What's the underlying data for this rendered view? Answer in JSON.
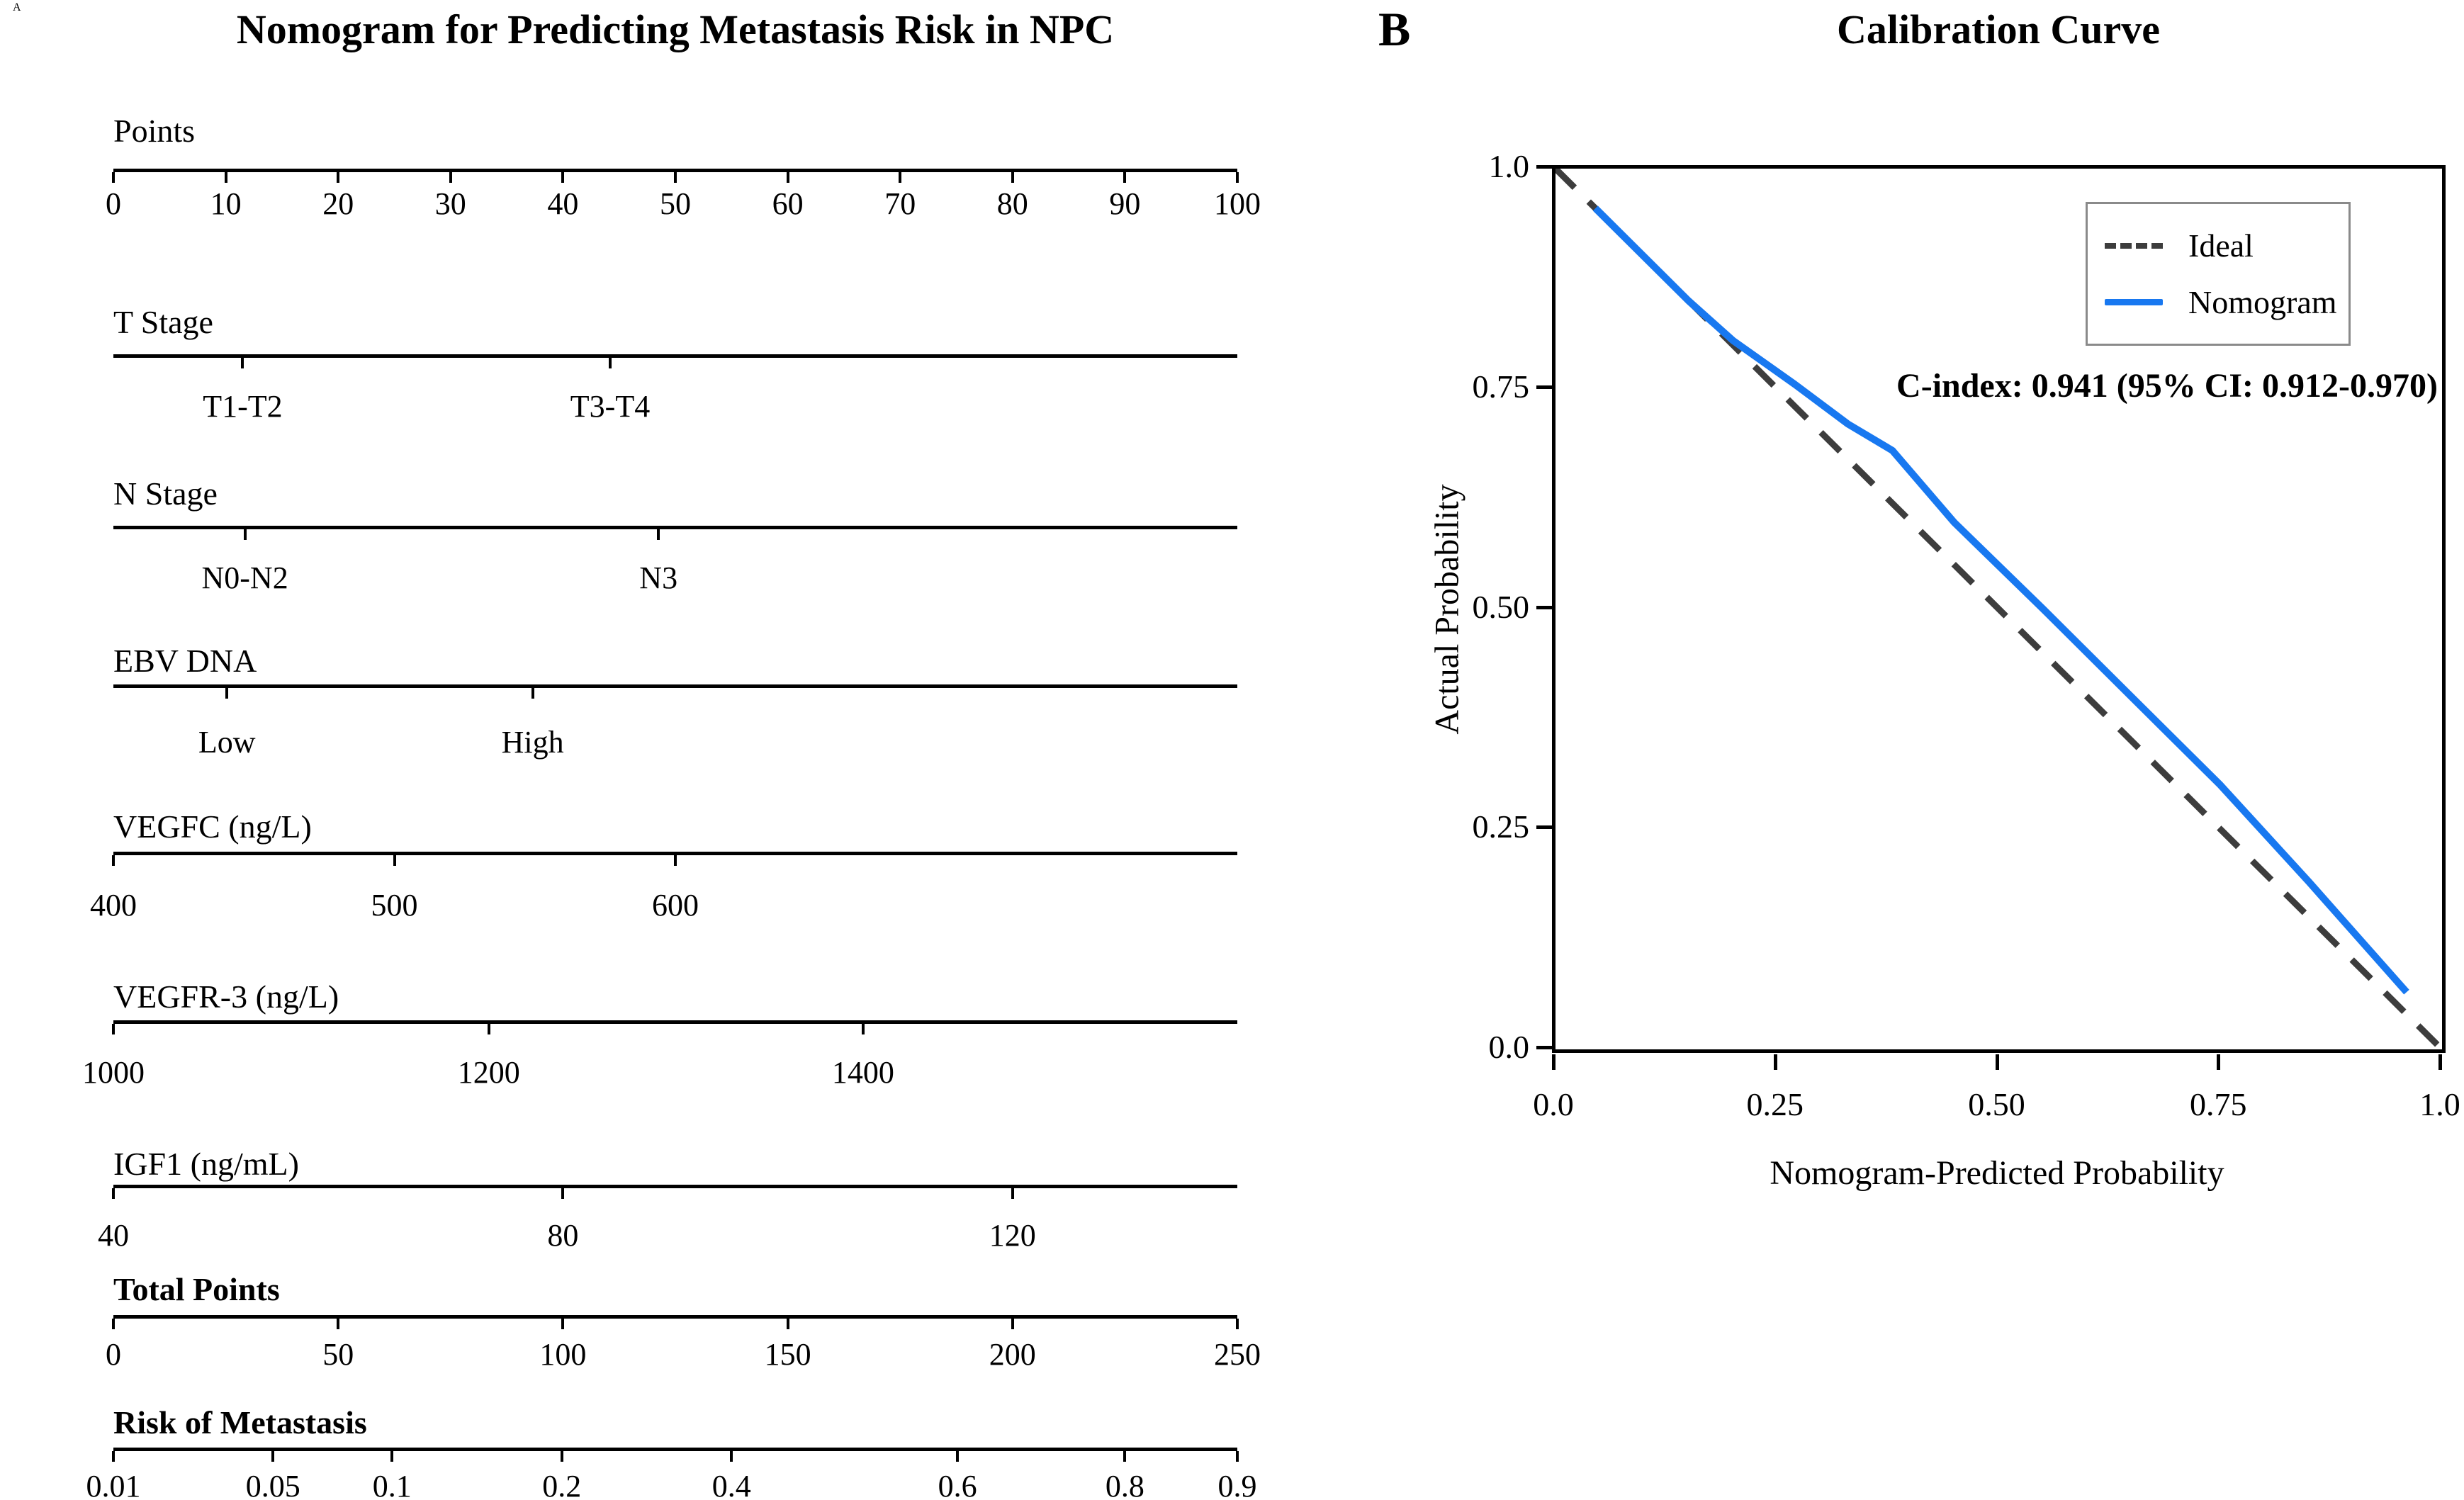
{
  "panel_a": {
    "label": "A",
    "title": "Nomogram for Predicting Metastasis Risk in NPC",
    "rows": [
      {
        "label": "Points",
        "bold": false,
        "ticks": [
          {
            "f": 0,
            "t": "0"
          },
          {
            "f": 0.1,
            "t": "10"
          },
          {
            "f": 0.2,
            "t": "20"
          },
          {
            "f": 0.3,
            "t": "30"
          },
          {
            "f": 0.4,
            "t": "40"
          },
          {
            "f": 0.5,
            "t": "50"
          },
          {
            "f": 0.6,
            "t": "60"
          },
          {
            "f": 0.7,
            "t": "70"
          },
          {
            "f": 0.8,
            "t": "80"
          },
          {
            "f": 0.9,
            "t": "90"
          },
          {
            "f": 1,
            "t": "100"
          }
        ]
      },
      {
        "label": "T Stage",
        "bold": false,
        "ticks": [
          {
            "f": 0.115,
            "t": "T1-T2"
          },
          {
            "f": 0.442,
            "t": "T3-T4"
          }
        ]
      },
      {
        "label": "N Stage",
        "bold": false,
        "ticks": [
          {
            "f": 0.117,
            "t": "N0-N2"
          },
          {
            "f": 0.485,
            "t": "N3"
          }
        ]
      },
      {
        "label": "EBV DNA",
        "bold": false,
        "ticks": [
          {
            "f": 0.101,
            "t": "Low"
          },
          {
            "f": 0.373,
            "t": "High"
          }
        ]
      },
      {
        "label": "VEGFC (ng/L)",
        "bold": false,
        "ticks": [
          {
            "f": 0,
            "t": "400"
          },
          {
            "f": 0.25,
            "t": "500"
          },
          {
            "f": 0.5,
            "t": "600"
          }
        ]
      },
      {
        "label": "VEGFR-3 (ng/L)",
        "bold": false,
        "ticks": [
          {
            "f": 0,
            "t": "1000"
          },
          {
            "f": 0.334,
            "t": "1200"
          },
          {
            "f": 0.667,
            "t": "1400"
          }
        ]
      },
      {
        "label": "IGF1 (ng/mL)",
        "bold": false,
        "ticks": [
          {
            "f": 0,
            "t": "40"
          },
          {
            "f": 0.4,
            "t": "80"
          },
          {
            "f": 0.8,
            "t": "120"
          }
        ]
      },
      {
        "label": "Total Points",
        "bold": true,
        "ticks": [
          {
            "f": 0,
            "t": "0"
          },
          {
            "f": 0.2,
            "t": "50"
          },
          {
            "f": 0.4,
            "t": "100"
          },
          {
            "f": 0.6,
            "t": "150"
          },
          {
            "f": 0.8,
            "t": "200"
          },
          {
            "f": 1,
            "t": "250"
          }
        ]
      },
      {
        "label": "Risk of Metastasis",
        "bold": true,
        "ticks": [
          {
            "f": 0,
            "t": "0.01"
          },
          {
            "f": 0.142,
            "t": "0.05"
          },
          {
            "f": 0.248,
            "t": "0.1"
          },
          {
            "f": 0.399,
            "t": "0.2"
          },
          {
            "f": 0.55,
            "t": "0.4"
          },
          {
            "f": 0.751,
            "t": "0.6"
          },
          {
            "f": 0.9,
            "t": "0.8"
          },
          {
            "f": 1,
            "t": "0.9"
          }
        ]
      }
    ]
  },
  "panel_b": {
    "label": "B",
    "title": "Calibration Curve",
    "xlabel": "Nomogram-Predicted Probability",
    "ylabel": "Actual Probability",
    "annotation": "C-index: 0.941 (95% CI: 0.912-0.970)",
    "x_ticks": [
      {
        "f": 0,
        "t": "0.0"
      },
      {
        "f": 0.25,
        "t": "0.25"
      },
      {
        "f": 0.5,
        "t": "0.50"
      },
      {
        "f": 0.75,
        "t": "0.75"
      },
      {
        "f": 1,
        "t": "1.0"
      }
    ],
    "y_ticks": [
      {
        "f": 1,
        "t": "1.0"
      },
      {
        "f": 0.75,
        "t": "0.75"
      },
      {
        "f": 0.5,
        "t": "0.50"
      },
      {
        "f": 0.25,
        "t": "0.25"
      },
      {
        "f": 0,
        "t": "0.0"
      }
    ],
    "legend": [
      {
        "label": "Ideal",
        "style": "dashed",
        "color": "#3d3d3d"
      },
      {
        "label": "Nomogram",
        "style": "solid",
        "color": "#1878f0"
      }
    ],
    "chart_data": {
      "type": "line",
      "title": "Calibration Curve",
      "xlabel": "Nomogram-Predicted Probability",
      "ylabel": "Actual Probability",
      "xlim": [
        0,
        1
      ],
      "ylim": [
        0,
        1
      ],
      "grid": false,
      "legend_position": "upper right",
      "series": [
        {
          "name": "Ideal",
          "style": "dashed",
          "color": "#3d3d3d",
          "points": [
            [
              0,
              1.0
            ],
            [
              1.0,
              0
            ]
          ]
        },
        {
          "name": "Nomogram",
          "style": "solid",
          "color": "#1878f0",
          "points": [
            [
              0.045,
              0.955
            ],
            [
              0.1,
              0.9
            ],
            [
              0.15,
              0.85
            ],
            [
              0.2,
              0.805
            ],
            [
              0.27,
              0.755
            ],
            [
              0.33,
              0.71
            ],
            [
              0.38,
              0.68
            ],
            [
              0.45,
              0.598
            ],
            [
              0.55,
              0.5
            ],
            [
              0.65,
              0.4
            ],
            [
              0.75,
              0.3
            ],
            [
              0.85,
              0.19
            ],
            [
              0.96,
              0.065
            ]
          ]
        }
      ]
    }
  }
}
